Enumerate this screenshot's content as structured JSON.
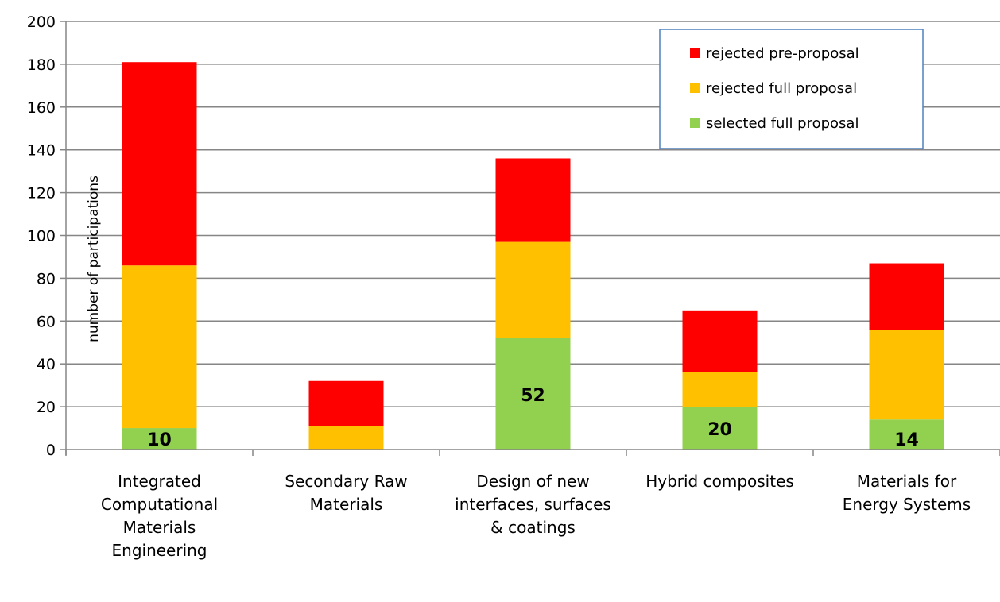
{
  "chart_data": {
    "type": "bar",
    "stacked": true,
    "categories": [
      [
        "Integrated",
        "Computational",
        "Materials",
        "Engineering"
      ],
      [
        "Secondary Raw",
        "Materials"
      ],
      [
        "Design of new",
        "interfaces, surfaces",
        "& coatings"
      ],
      [
        "Hybrid composites"
      ],
      [
        "Materials for",
        "Energy Systems"
      ]
    ],
    "series": [
      {
        "name": "selected full proposal",
        "color": "#92D050",
        "values": [
          10,
          0,
          52,
          20,
          14
        ]
      },
      {
        "name": "rejected full proposal",
        "color": "#FFC000",
        "values": [
          76,
          11,
          45,
          16,
          42
        ]
      },
      {
        "name": "rejected pre-proposal",
        "color": "#FF0000",
        "values": [
          95,
          21,
          39,
          29,
          31
        ]
      }
    ],
    "data_labels": [
      "10",
      "",
      "52",
      "20",
      "14"
    ],
    "ylabel": "number of participations",
    "ylim": [
      0,
      200
    ],
    "yticks": [
      0,
      20,
      40,
      60,
      80,
      100,
      120,
      140,
      160,
      180,
      200
    ],
    "grid": true,
    "legend_position": "top-right",
    "legend_order": [
      "rejected pre-proposal",
      "rejected full proposal",
      "selected full proposal"
    ],
    "legend_border_color": "#4F81BD",
    "axis_color": "#868686"
  }
}
